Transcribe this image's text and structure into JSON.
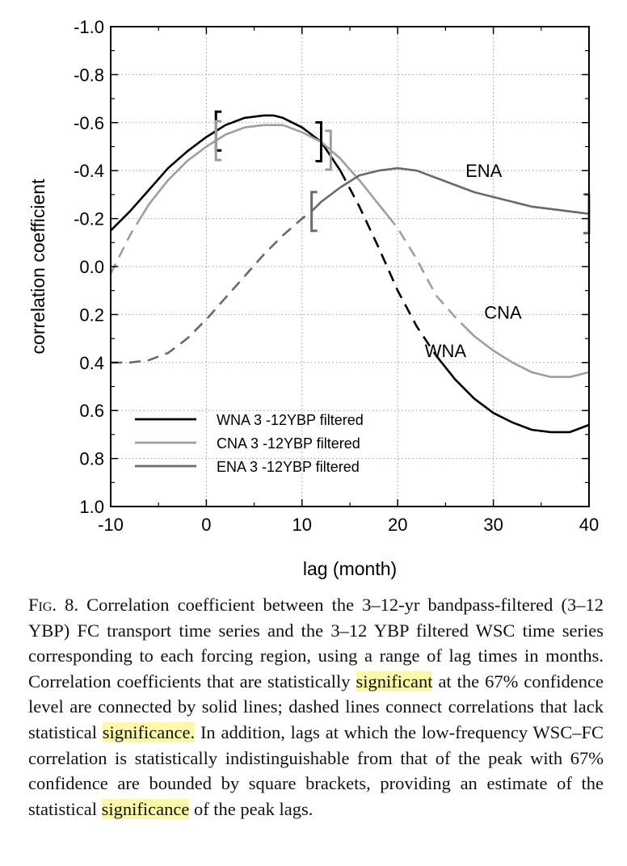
{
  "chart_data": {
    "type": "line",
    "xlabel": "lag (month)",
    "ylabel": "correlation coefficient",
    "xlim": [
      -10,
      40
    ],
    "ylim": [
      -1.0,
      1.0
    ],
    "y_inverted": true,
    "grid": true,
    "legend_placement": "bottom-left",
    "x_ticks": [
      "-10",
      "0",
      "10",
      "20",
      "30",
      "40"
    ],
    "y_ticks": [
      "-1.0",
      "-0.8",
      "-0.6",
      "-0.4",
      "-0.2",
      "0.0",
      "0.2",
      "0.4",
      "0.6",
      "0.8",
      "1.0"
    ],
    "legend": [
      "WNA 3 -12YBP filtered",
      "CNA 3 -12YBP filtered",
      "ENA 3 -12YBP filtered"
    ],
    "series": [
      {
        "name": "WNA",
        "color": "#000000",
        "x": [
          -10,
          -8,
          -6,
          -4,
          -2,
          0,
          2,
          4,
          6,
          7,
          8,
          10,
          12,
          14,
          16,
          18,
          20,
          22,
          24,
          26,
          28,
          30,
          32,
          34,
          36,
          37,
          38,
          40
        ],
        "y": [
          -0.15,
          -0.23,
          -0.32,
          -0.41,
          -0.48,
          -0.54,
          -0.59,
          -0.62,
          -0.63,
          -0.63,
          -0.62,
          -0.58,
          -0.52,
          -0.4,
          -0.25,
          -0.08,
          0.1,
          0.25,
          0.37,
          0.47,
          0.55,
          0.61,
          0.65,
          0.68,
          0.69,
          0.69,
          0.69,
          0.66
        ],
        "significant_ranges": [
          [
            -10,
            14
          ],
          [
            24,
            40
          ]
        ],
        "label": "WNA",
        "label_at": [
          25,
          0.35
        ],
        "brackets": [
          1,
          12
        ]
      },
      {
        "name": "CNA",
        "color": "#9e9e9e",
        "x": [
          -10,
          -8,
          -6,
          -4,
          -2,
          0,
          2,
          4,
          6,
          7,
          8,
          10,
          12,
          14,
          16,
          18,
          20,
          22,
          24,
          26,
          28,
          30,
          32,
          34,
          36,
          37,
          38,
          40
        ],
        "y": [
          0.03,
          -0.13,
          -0.26,
          -0.36,
          -0.44,
          -0.5,
          -0.55,
          -0.58,
          -0.59,
          -0.59,
          -0.59,
          -0.56,
          -0.52,
          -0.45,
          -0.36,
          -0.26,
          -0.16,
          -0.03,
          0.12,
          0.21,
          0.29,
          0.35,
          0.4,
          0.44,
          0.46,
          0.46,
          0.46,
          0.44
        ],
        "significant_ranges": [
          [
            -7,
            19
          ],
          [
            27,
            40
          ]
        ],
        "label": "CNA",
        "label_at": [
          31,
          0.19
        ],
        "brackets": [
          1,
          13
        ]
      },
      {
        "name": "ENA",
        "color": "#6a6a6a",
        "x": [
          -10,
          -8,
          -6,
          -4,
          -2,
          0,
          2,
          4,
          6,
          8,
          10,
          11,
          12,
          14,
          16,
          18,
          20,
          22,
          24,
          26,
          28,
          30,
          32,
          34,
          36,
          38,
          40
        ],
        "y": [
          0.4,
          0.4,
          0.39,
          0.36,
          0.3,
          0.22,
          0.13,
          0.04,
          -0.05,
          -0.13,
          -0.2,
          -0.23,
          -0.27,
          -0.33,
          -0.38,
          -0.4,
          -0.41,
          -0.4,
          -0.37,
          -0.34,
          -0.31,
          -0.29,
          -0.27,
          -0.25,
          -0.24,
          -0.23,
          -0.22
        ],
        "significant_ranges": [
          [
            11,
            40
          ]
        ],
        "label": "ENA",
        "label_at": [
          29,
          -0.4
        ],
        "brackets": [
          11,
          40
        ]
      }
    ]
  },
  "caption": {
    "fig_label": "Fig. 8.",
    "text_1": " Correlation coefficient between the 3–12-yr bandpass-filtered (3–12 YBP) FC transport time series and the 3–12 YBP filtered WSC time series corresponding to each forcing region, using a range of lag times in months. Correlation coefficients that are statistically ",
    "hl_1": "significant",
    "text_2": " at the 67% confidence level are connected by solid lines; dashed lines connect correlations that lack statistical ",
    "hl_2": "significance.",
    "text_3": " In addition, lags at which the low-frequency WSC–FC correlation is statistically indistinguishable from that of the peak with 67% confidence are bounded by square brackets, providing an estimate of the statistical ",
    "hl_3": "significance",
    "text_4": " of the peak lags."
  }
}
